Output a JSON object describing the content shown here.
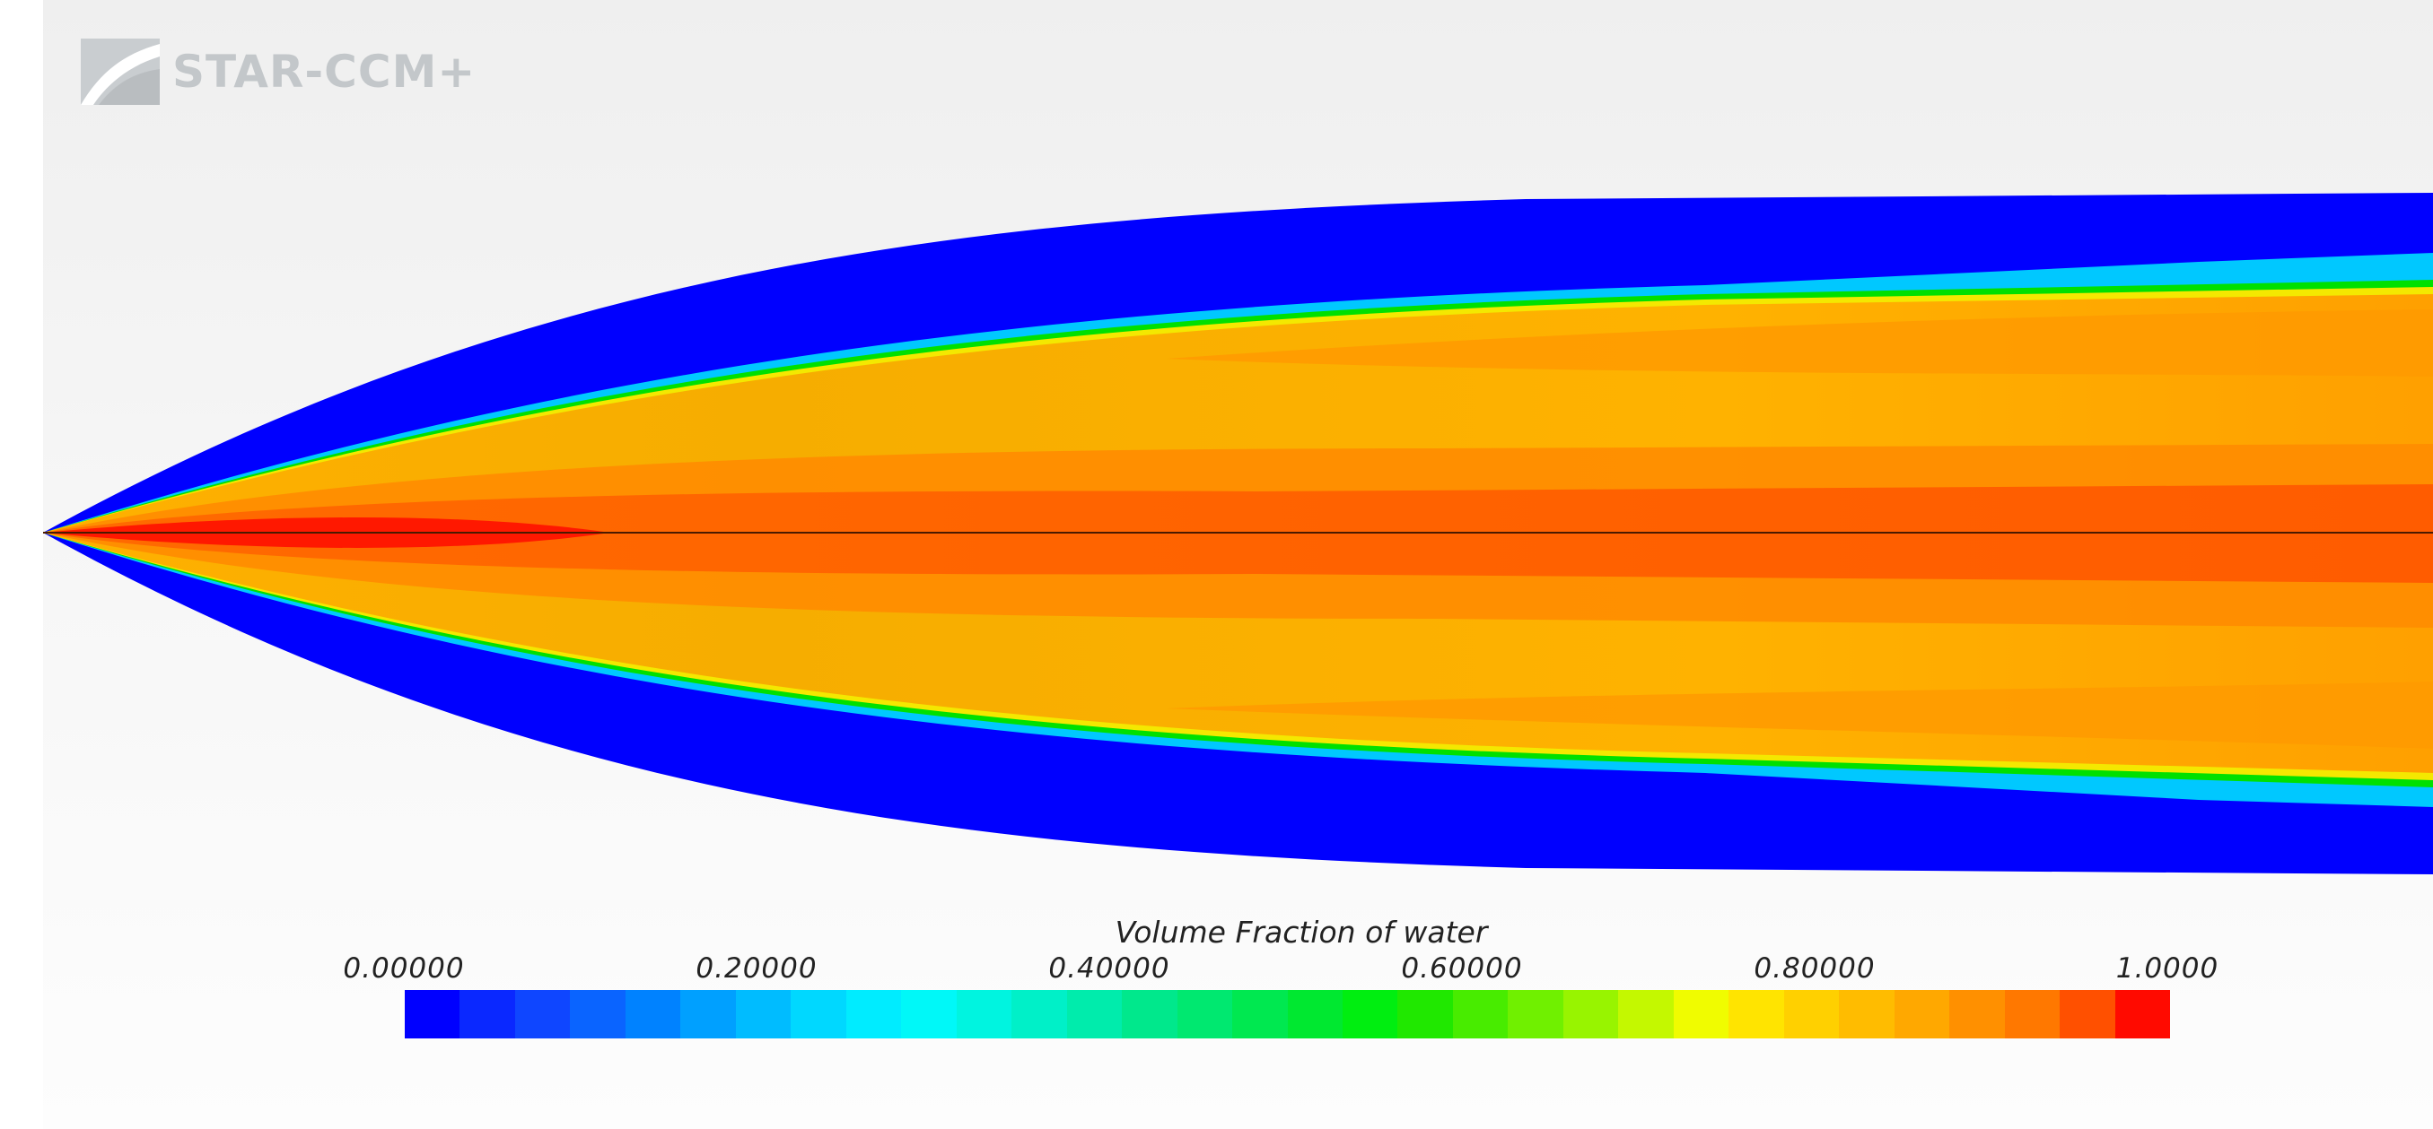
{
  "app": {
    "logo_text": "STAR-CCM+",
    "logo_icon": "star-ccm-logo-icon"
  },
  "legend": {
    "title": "Volume Fraction of water",
    "ticks": [
      "0.00000",
      "0.20000",
      "0.40000",
      "0.60000",
      "0.80000",
      "1.0000"
    ],
    "min": 0.0,
    "max": 1.0,
    "segments": 32,
    "colors": [
      "#0000ff",
      "#0a28ff",
      "#0f46ff",
      "#0a64ff",
      "#0082ff",
      "#00a0ff",
      "#00bcff",
      "#00d8ff",
      "#00ecff",
      "#00f8f8",
      "#00f4e0",
      "#00f0c8",
      "#00ecac",
      "#00e88c",
      "#00e870",
      "#00e850",
      "#00e830",
      "#00ee10",
      "#20e800",
      "#48ec00",
      "#70f000",
      "#98f400",
      "#c4f800",
      "#f0fc00",
      "#ffe400",
      "#ffd000",
      "#ffbc00",
      "#ffa800",
      "#ff9000",
      "#ff7800",
      "#ff5000",
      "#ff0a00"
    ]
  },
  "field": {
    "quantity": "Volume Fraction of water",
    "color_outer": "#0000ff",
    "color_edge_cyan": "#00ccff",
    "color_edge_green": "#00e000",
    "color_body": "#ffb400",
    "color_core": "#ff6400",
    "color_tip": "#ff1800"
  }
}
